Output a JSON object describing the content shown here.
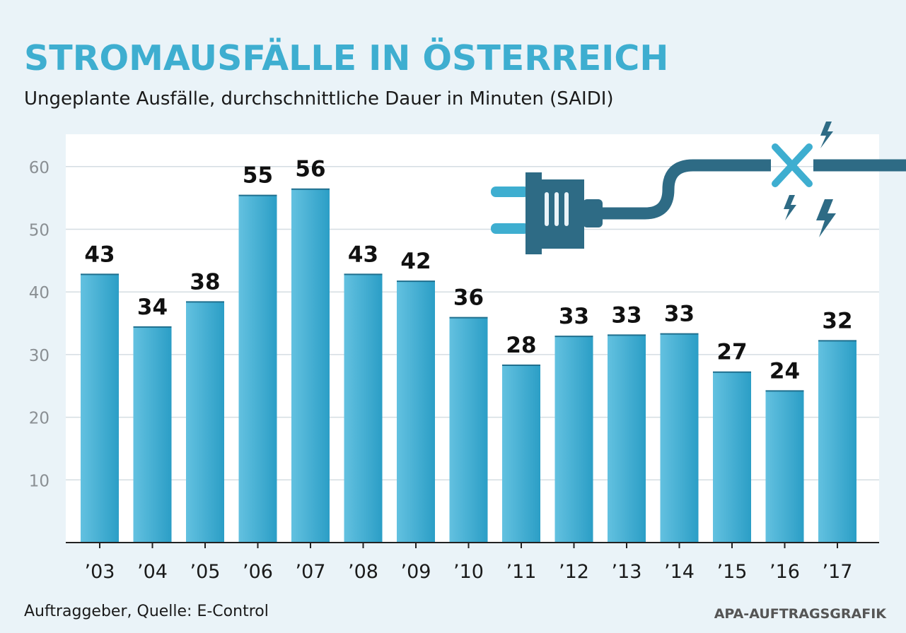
{
  "chart_data": {
    "type": "bar",
    "title": "STROMAUSFÄLLE IN ÖSTERREICH",
    "subtitle": "Ungeplante Ausfälle, durchschnittliche Dauer in Minuten (SAIDI)",
    "categories": [
      "’03",
      "’04",
      "’05",
      "’06",
      "’07",
      "’08",
      "’09",
      "’10",
      "’11",
      "’12",
      "’13",
      "’14",
      "’15",
      "’16",
      "’17"
    ],
    "values": [
      42.8,
      34.4,
      38.4,
      55.4,
      56.4,
      42.8,
      41.7,
      35.9,
      28.3,
      32.9,
      33.1,
      33.3,
      27.2,
      24.2,
      32.2
    ],
    "data_labels": [
      "43",
      "34",
      "38",
      "55",
      "56",
      "43",
      "42",
      "36",
      "28",
      "33",
      "33",
      "33",
      "27",
      "24",
      "32"
    ],
    "yticks": [
      "10",
      "20",
      "30",
      "40",
      "50",
      "60"
    ],
    "ylim": [
      0,
      65
    ],
    "grid": true,
    "source": "Auftraggeber, Quelle: E-Control",
    "credit": "APA-AUFTRAGSGRAFIK"
  },
  "colors": {
    "title": "#3eaed0",
    "bar_light": "#63c1e0",
    "bar_dark": "#2b9ec6",
    "plot_bg": "#ffffff",
    "grid": "#d4dde2",
    "tick_label": "#8a8f93",
    "plug": "#2e6b85",
    "plug_prongs": "#3eaed0"
  },
  "icons": [
    "plug-icon",
    "cable-break-icon",
    "lightning-icon"
  ]
}
